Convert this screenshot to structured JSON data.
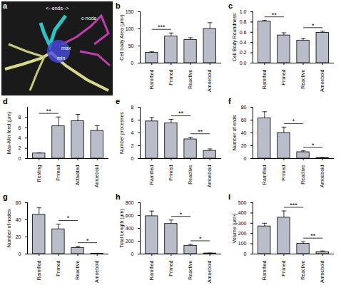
{
  "chart_data": [
    {
      "type": "bar",
      "letter": "b",
      "y_label": "Cell body Area (µm²)",
      "categories": [
        "Ramified",
        "Primed",
        "Reactive",
        "Amoeboid"
      ],
      "values": [
        30,
        78,
        68,
        100
      ],
      "errors": [
        3,
        10,
        6,
        18
      ],
      "ylim": [
        0,
        150
      ],
      "yticks": [
        0,
        50,
        100,
        150
      ],
      "color": "#b9bcc9",
      "significance": [
        {
          "between": [
            "Ramified",
            "Primed"
          ],
          "label": "***"
        }
      ]
    },
    {
      "type": "bar",
      "letter": "c",
      "y_label": "Cell Body Roundness",
      "categories": [
        "Ramified",
        "Primed",
        "Reactive",
        "Amoeboid"
      ],
      "values": [
        0.81,
        0.54,
        0.44,
        0.59
      ],
      "errors": [
        0.02,
        0.05,
        0.04,
        0.03
      ],
      "ylim": [
        0,
        1
      ],
      "yticks": [
        {
          "value": 0,
          "label": "0.0"
        },
        {
          "value": 0.2,
          "label": "0.2"
        },
        {
          "value": 0.4,
          "label": "0.4"
        },
        {
          "value": 0.6,
          "label": "0.6"
        },
        {
          "value": 0.8,
          "label": "0.8"
        },
        {
          "value": 1,
          "label": "1.0"
        }
      ],
      "color": "#b9bcc9",
      "significance": [
        {
          "between": [
            "Ramified",
            "Primed"
          ],
          "label": "**"
        },
        {
          "between": [
            "Reactive",
            "Amoeboid"
          ],
          "label": "*"
        }
      ]
    },
    {
      "type": "bar",
      "letter": "d",
      "y_label": "Max-Min feret (µm)",
      "categories": [
        "Resting",
        "Primed",
        "Activated",
        "Amoeboid"
      ],
      "values": [
        1.0,
        6.3,
        7.3,
        5.4
      ],
      "errors": [
        0.1,
        1.8,
        1.3,
        1.0
      ],
      "ylim": [
        0,
        10
      ],
      "yticks": [
        0,
        2,
        4,
        6,
        8
      ],
      "color": "#b9bcc9",
      "significance": [
        {
          "between": [
            "Resting",
            "Primed"
          ],
          "label": "**"
        }
      ]
    },
    {
      "type": "bar",
      "letter": "e",
      "y_label": "Number processes",
      "categories": [
        "Ramified",
        "Primed",
        "Reactive",
        "Amoeboid"
      ],
      "values": [
        5.8,
        5.5,
        3.0,
        1.2
      ],
      "errors": [
        0.6,
        0.6,
        0.3,
        0.3
      ],
      "ylim": [
        0,
        8
      ],
      "yticks": [
        0,
        2,
        4,
        6,
        8
      ],
      "color": "#b9bcc9",
      "significance": [
        {
          "between": [
            "Primed",
            "Reactive"
          ],
          "label": "**"
        },
        {
          "between": [
            "Reactive",
            "Amoeboid"
          ],
          "label": "**"
        }
      ]
    },
    {
      "type": "bar",
      "letter": "f",
      "y_label": "Number of ends",
      "categories": [
        "Ramified",
        "Primed",
        "Reactive",
        "Amoeboid"
      ],
      "values": [
        63,
        40,
        10,
        1
      ],
      "errors": [
        10,
        9,
        2,
        0.5
      ],
      "ylim": [
        0,
        80
      ],
      "yticks": [
        0,
        20,
        40,
        60,
        80
      ],
      "color": "#b9bcc9",
      "significance": [
        {
          "between": [
            "Primed",
            "Reactive"
          ],
          "label": "*"
        },
        {
          "between": [
            "Reactive",
            "Amoeboid"
          ],
          "label": "*"
        }
      ]
    },
    {
      "type": "bar",
      "letter": "g",
      "y_label": "Number of nodes",
      "categories": [
        "Ramified",
        "Primed",
        "Reactive",
        "Amoeboid"
      ],
      "values": [
        46,
        29,
        7,
        0.5
      ],
      "errors": [
        8,
        6,
        2,
        0.3
      ],
      "ylim": [
        0,
        60
      ],
      "yticks": [
        0,
        20,
        40,
        60
      ],
      "color": "#b9bcc9",
      "significance": [
        {
          "between": [
            "Primed",
            "Reactive"
          ],
          "label": "*"
        },
        {
          "between": [
            "Reactive",
            "Amoeboid"
          ],
          "label": "*"
        }
      ]
    },
    {
      "type": "bar",
      "letter": "h",
      "y_label": "Total Length (µm)",
      "categories": [
        "Ramified",
        "Primed",
        "Reactive",
        "Amoeboid"
      ],
      "values": [
        590,
        470,
        130,
        10
      ],
      "errors": [
        80,
        60,
        20,
        5
      ],
      "ylim": [
        0,
        800
      ],
      "yticks": [
        0,
        200,
        400,
        600,
        800
      ],
      "color": "#b9bcc9",
      "significance": [
        {
          "between": [
            "Primed",
            "Reactive"
          ],
          "label": "*"
        },
        {
          "between": [
            "Reactive",
            "Amoeboid"
          ],
          "label": "*"
        }
      ]
    },
    {
      "type": "bar",
      "letter": "i",
      "y_label": "Volume (µm³)",
      "categories": [
        "Ramified",
        "Primed",
        "Reactive",
        "Amoeboid"
      ],
      "values": [
        270,
        355,
        100,
        20
      ],
      "errors": [
        30,
        65,
        20,
        10
      ],
      "ylim": [
        0,
        500
      ],
      "yticks": [
        0,
        100,
        200,
        300,
        400,
        500
      ],
      "color": "#b9bcc9",
      "significance": [
        {
          "between": [
            "Primed",
            "Reactive"
          ],
          "label": "***"
        },
        {
          "between": [
            "Reactive",
            "Amoeboid"
          ],
          "label": "**"
        }
      ]
    }
  ],
  "image_panel": {
    "letter": "a",
    "labels": [
      "<--ends-->",
      "c-node",
      "max",
      "min"
    ]
  }
}
